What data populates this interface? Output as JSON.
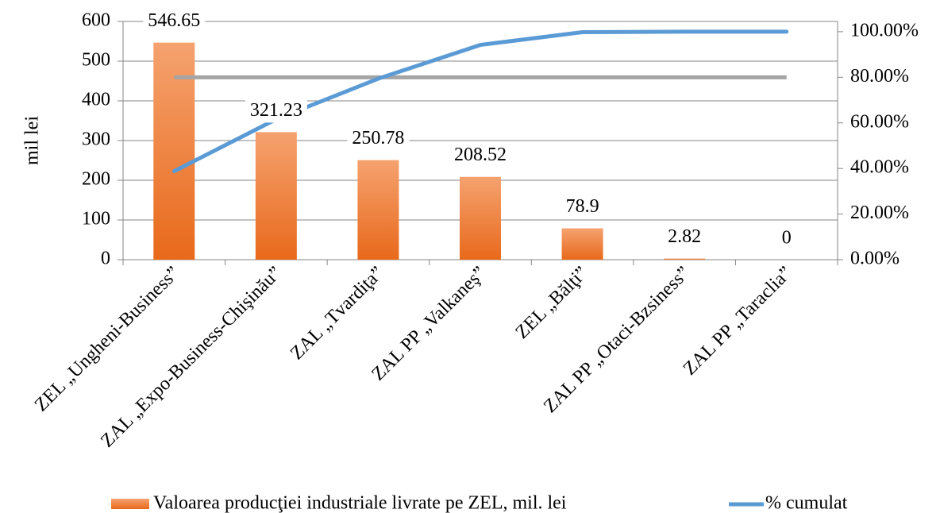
{
  "chart_data": {
    "type": "bar",
    "y_label": "mil lei",
    "categories": [
      "ZEL „Ungheni-Business”",
      "ZAL „Expo-Business-Chişinău”",
      "ZAL „Tvardiţa”",
      "ZAL PP „Valkaneş”",
      "ZEL „Bălţi”",
      "ZAL PP „Otaci-Bzsiness”",
      "ZAL PP „Taraclia”"
    ],
    "series": [
      {
        "name": "Valoarea producţiei industriale livrate pe ZEL, mil. lei",
        "color": "#ed7d31",
        "values": [
          546.65,
          321.23,
          250.78,
          208.52,
          78.9,
          2.82,
          0
        ]
      },
      {
        "name": "% cumulat",
        "color": "#5b9bd5",
        "axis": "y2",
        "values": [
          38.8,
          61.6,
          79.4,
          94.2,
          99.8,
          100,
          100
        ]
      }
    ],
    "reference_line": {
      "value": 80,
      "axis": "y2",
      "color": "#a5a5a5"
    },
    "ylim": [
      0,
      600
    ],
    "yticks": [
      0,
      100,
      200,
      300,
      400,
      500,
      600
    ],
    "y2lim": [
      0,
      104.5
    ],
    "y2ticks": [
      {
        "value": 0,
        "label": "0.00%"
      },
      {
        "value": 20,
        "label": "20.00%"
      },
      {
        "value": 40,
        "label": "40.00%"
      },
      {
        "value": 60,
        "label": "60.00%"
      },
      {
        "value": 80,
        "label": "80.00%"
      },
      {
        "value": 100,
        "label": "100.00%"
      }
    ],
    "grid": true,
    "legend": "bottom"
  }
}
